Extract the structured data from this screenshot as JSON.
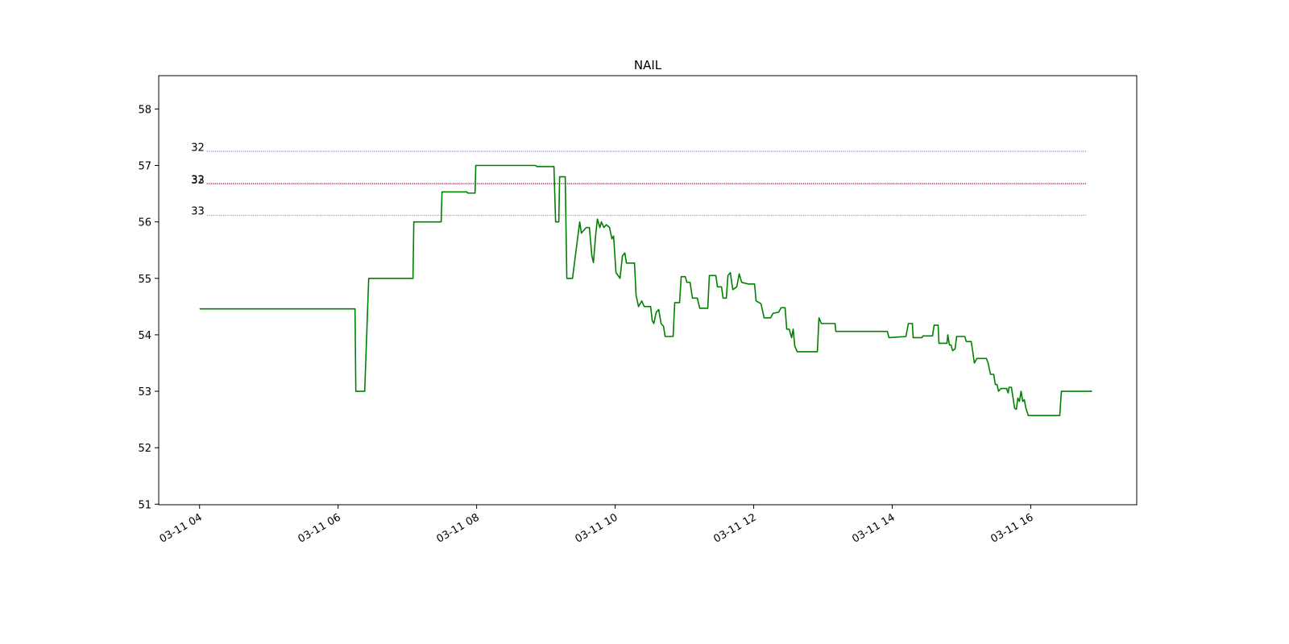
{
  "chart_data": {
    "type": "line",
    "title": "NAIL",
    "x": [
      4.0,
      6.244,
      6.256,
      6.384,
      6.442,
      7.081,
      7.093,
      7.488,
      7.5,
      7.86,
      7.872,
      7.977,
      7.988,
      8.849,
      8.872,
      9.116,
      9.14,
      9.186,
      9.198,
      9.279,
      9.302,
      9.384,
      9.488,
      9.512,
      9.581,
      9.628,
      9.663,
      9.686,
      9.721,
      9.744,
      9.779,
      9.802,
      9.837,
      9.872,
      9.919,
      9.953,
      9.977,
      10.012,
      10.07,
      10.105,
      10.14,
      10.163,
      10.279,
      10.302,
      10.337,
      10.384,
      10.419,
      10.512,
      10.535,
      10.558,
      10.593,
      10.628,
      10.663,
      10.698,
      10.721,
      10.837,
      10.86,
      10.93,
      10.953,
      11.012,
      11.035,
      11.081,
      11.116,
      11.186,
      11.221,
      11.337,
      11.36,
      11.453,
      11.477,
      11.535,
      11.558,
      11.605,
      11.628,
      11.663,
      11.698,
      11.756,
      11.791,
      11.826,
      11.919,
      12.012,
      12.035,
      12.105,
      12.151,
      12.244,
      12.279,
      12.36,
      12.395,
      12.453,
      12.477,
      12.512,
      12.547,
      12.57,
      12.593,
      12.628,
      12.919,
      12.942,
      12.977,
      13.174,
      13.186,
      13.93,
      13.953,
      14.198,
      14.233,
      14.291,
      14.302,
      14.43,
      14.442,
      14.581,
      14.605,
      14.663,
      14.674,
      14.791,
      14.802,
      14.826,
      14.849,
      14.872,
      14.907,
      14.93,
      15.047,
      15.07,
      15.14,
      15.163,
      15.186,
      15.221,
      15.36,
      15.384,
      15.419,
      15.465,
      15.488,
      15.512,
      15.535,
      15.57,
      15.651,
      15.674,
      15.686,
      15.721,
      15.767,
      15.791,
      15.814,
      15.837,
      15.86,
      15.884,
      15.907,
      15.93,
      15.965,
      16.419,
      16.442,
      16.884
    ],
    "values": [
      54.46,
      54.46,
      53.0,
      53.0,
      55.0,
      55.0,
      56.0,
      56.0,
      56.53,
      56.53,
      56.51,
      56.51,
      57.0,
      57.0,
      56.98,
      56.98,
      56.0,
      56.0,
      56.8,
      56.8,
      55.0,
      55.0,
      56.0,
      55.8,
      55.9,
      55.9,
      55.4,
      55.28,
      55.8,
      56.05,
      55.9,
      56.0,
      55.9,
      55.95,
      55.9,
      55.7,
      55.75,
      55.1,
      55.0,
      55.4,
      55.45,
      55.27,
      55.27,
      54.7,
      54.5,
      54.6,
      54.5,
      54.5,
      54.25,
      54.2,
      54.4,
      54.45,
      54.2,
      54.15,
      53.97,
      53.97,
      54.57,
      54.57,
      55.03,
      55.03,
      54.93,
      54.93,
      54.65,
      54.65,
      54.47,
      54.47,
      55.05,
      55.05,
      54.85,
      54.85,
      54.65,
      54.65,
      55.05,
      55.1,
      54.8,
      54.85,
      55.08,
      54.93,
      54.9,
      54.9,
      54.6,
      54.55,
      54.3,
      54.3,
      54.38,
      54.4,
      54.48,
      54.48,
      54.1,
      54.1,
      53.95,
      54.1,
      53.8,
      53.7,
      53.7,
      54.3,
      54.2,
      54.2,
      54.06,
      54.06,
      53.95,
      53.97,
      54.2,
      54.2,
      53.95,
      53.95,
      53.98,
      53.98,
      54.17,
      54.17,
      53.85,
      53.85,
      54.0,
      53.82,
      53.82,
      53.72,
      53.75,
      53.97,
      53.97,
      53.88,
      53.88,
      53.7,
      53.5,
      53.58,
      53.58,
      53.5,
      53.3,
      53.3,
      53.12,
      53.12,
      53.0,
      53.05,
      53.05,
      52.97,
      53.07,
      53.07,
      52.7,
      52.68,
      52.88,
      52.82,
      53.0,
      52.82,
      52.85,
      52.7,
      52.57,
      52.57,
      53.0,
      53.0
    ],
    "color": "green",
    "hlines": [
      {
        "value": 57.25,
        "label": "32",
        "color": "blue",
        "xmin": 4.105,
        "xmax": 16.814
      },
      {
        "value": 56.67,
        "label": "33",
        "color": "red",
        "xmin": 4.105,
        "xmax": 16.814
      },
      {
        "value": 56.68,
        "label": "32",
        "color": "blue",
        "xmin": 4.105,
        "xmax": 16.814
      },
      {
        "value": 56.12,
        "label": "33",
        "color": "red",
        "xmin": 4.105,
        "xmax": 16.814
      }
    ],
    "xlim": [
      3.41,
      17.53
    ],
    "ylim": [
      50.99,
      58.59
    ],
    "xticks": [
      {
        "value": 4,
        "label": "03-11 04"
      },
      {
        "value": 6,
        "label": "03-11 06"
      },
      {
        "value": 8,
        "label": "03-11 08"
      },
      {
        "value": 10,
        "label": "03-11 10"
      },
      {
        "value": 12,
        "label": "03-11 12"
      },
      {
        "value": 14,
        "label": "03-11 14"
      },
      {
        "value": 16,
        "label": "03-11 16"
      }
    ],
    "yticks": [
      51,
      52,
      53,
      54,
      55,
      56,
      57,
      58
    ],
    "grid": false
  }
}
